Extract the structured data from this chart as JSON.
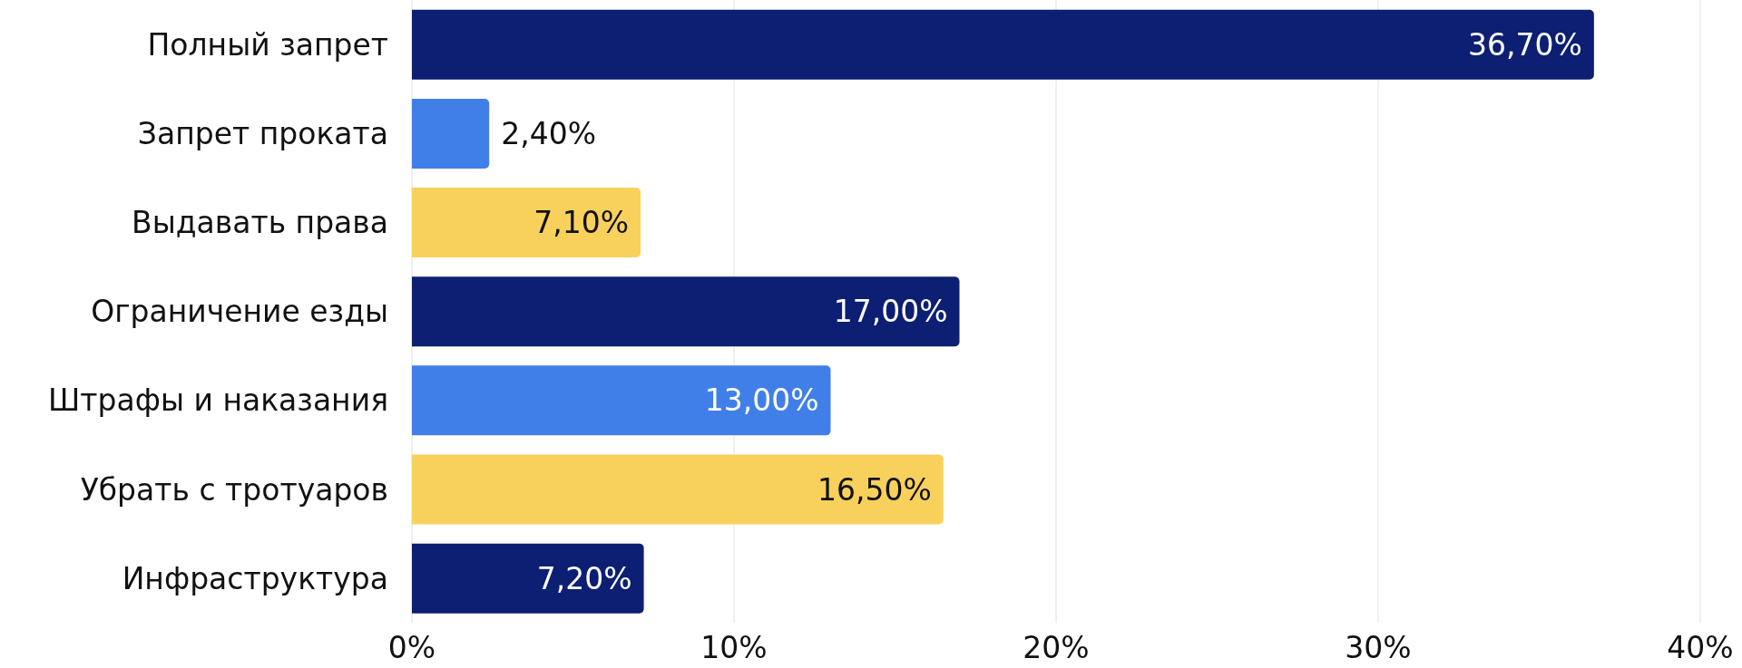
{
  "chart_data": {
    "type": "bar",
    "orientation": "horizontal",
    "categories": [
      "Полный запрет",
      "Запрет проката",
      "Выдавать права",
      "Ограничение езды",
      "Штрафы и наказания",
      "Убрать с тротуаров",
      "Инфраструктура"
    ],
    "values": [
      36.7,
      2.4,
      7.1,
      17.0,
      13.0,
      16.5,
      7.2
    ],
    "colors": [
      "#0d1f73",
      "#417fe8",
      "#f8d15c",
      "#0d1f73",
      "#417fe8",
      "#f8d15c",
      "#0d1f73"
    ],
    "value_labels": [
      "36,70%",
      "2,40%",
      "7,10%",
      "17,00%",
      "13,00%",
      "16,50%",
      "7,20%"
    ],
    "xlim": [
      0,
      40
    ],
    "xticks": [
      {
        "value": 0,
        "label": "0%"
      },
      {
        "value": 10,
        "label": "10%"
      },
      {
        "value": 20,
        "label": "20%"
      },
      {
        "value": 30,
        "label": "30%"
      },
      {
        "value": 40,
        "label": "40%"
      }
    ],
    "grid": "x"
  }
}
